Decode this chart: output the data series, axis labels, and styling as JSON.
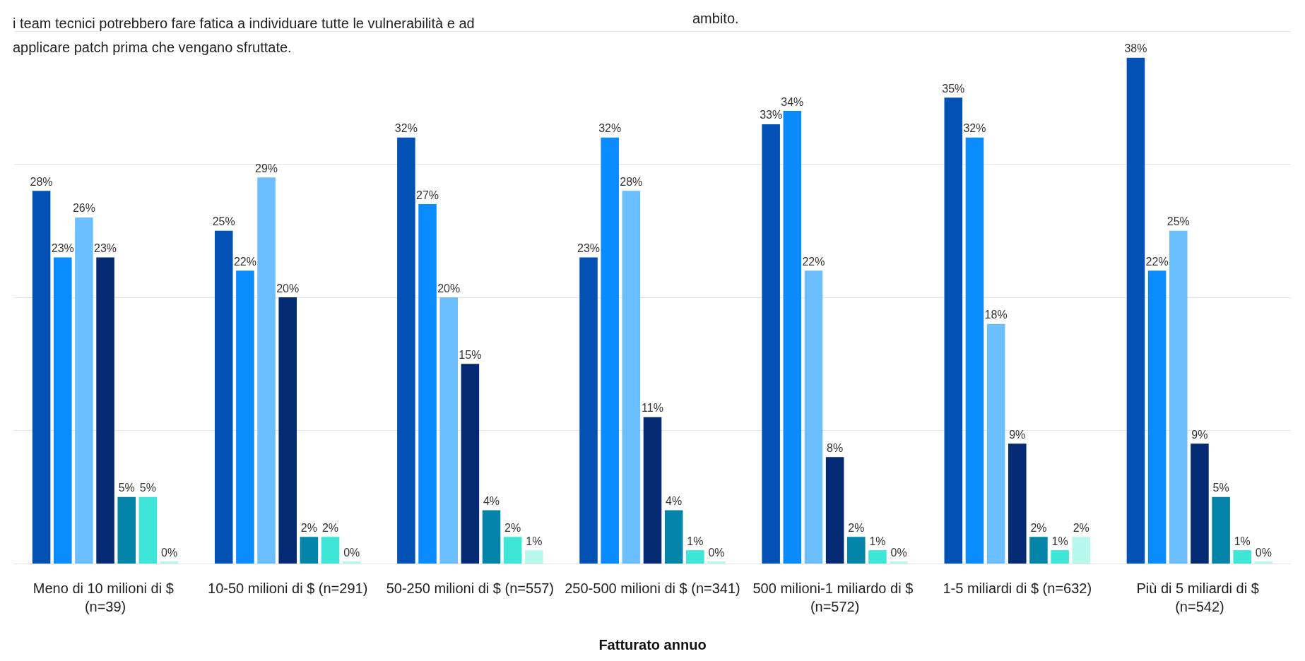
{
  "chart_data": {
    "type": "bar",
    "xlabel": "Fatturato annuo",
    "annotations": [
      "i team tecnici potrebbero fare fatica a individuare tutte le vulnerabilità e ad applicare patch prima che vengano sfruttate.",
      "ambito."
    ],
    "categories": [
      "Meno di 10 milioni di $ (n=39)",
      "10-50 milioni di $ (n=291)",
      "50-250 milioni di $ (n=557)",
      "250-500 milioni di $ (n=341)",
      "500 milioni-1 miliardo di $ (n=572)",
      "1-5 miliardi di $ (n=632)",
      "Più di 5 miliardi di $ (n=542)"
    ],
    "series": [
      {
        "color": "#0451b5",
        "values": [
          28,
          25,
          32,
          23,
          33,
          35,
          38
        ],
        "value_labels": [
          "28%",
          "25%",
          "32%",
          "23%",
          "33%",
          "35%",
          "38%"
        ]
      },
      {
        "color": "#0a8cff",
        "values": [
          23,
          22,
          27,
          32,
          34,
          32,
          22
        ],
        "value_labels": [
          "23%",
          "22%",
          "27%",
          "32%",
          "34%",
          "32%",
          "22%"
        ]
      },
      {
        "color": "#6cbfff",
        "values": [
          26,
          29,
          20,
          28,
          22,
          18,
          25
        ],
        "value_labels": [
          "26%",
          "29%",
          "20%",
          "28%",
          "22%",
          "18%",
          "25%"
        ]
      },
      {
        "color": "#032a72",
        "values": [
          23,
          20,
          15,
          11,
          8,
          9,
          9
        ],
        "value_labels": [
          "23%",
          "20%",
          "15%",
          "11%",
          "8%",
          "9%",
          "9%"
        ]
      },
      {
        "color": "#0484a8",
        "values": [
          5,
          2,
          4,
          4,
          2,
          2,
          5
        ],
        "value_labels": [
          "5%",
          "2%",
          "4%",
          "4%",
          "2%",
          "2%",
          "5%"
        ]
      },
      {
        "color": "#3ee6d8",
        "values": [
          5,
          2,
          2,
          1,
          1,
          1,
          1
        ],
        "value_labels": [
          "5%",
          "2%",
          "2%",
          "1%",
          "1%",
          "1%",
          "1%"
        ]
      },
      {
        "color": "#b8f8ec",
        "values": [
          0,
          0,
          1,
          0,
          0,
          2,
          0
        ],
        "value_labels": [
          "0%",
          "0%",
          "1%",
          "0%",
          "0%",
          "2%",
          "0%"
        ]
      }
    ],
    "tick_labels": "x",
    "grid": "y",
    "legend": false
  }
}
